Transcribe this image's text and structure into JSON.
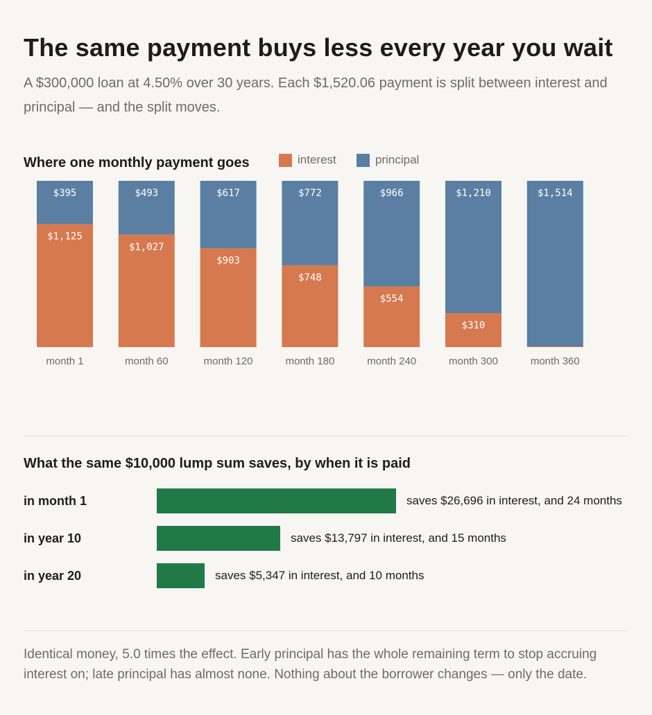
{
  "title": "The same payment buys less every year you wait",
  "subtitle": "A $300,000 loan at 4.50% over 30 years. Each $1,520.06 payment is split between interest and principal — and the split moves.",
  "colors": {
    "interest": "#d6794f",
    "principal": "#5b7fa2",
    "lump_bar": "#217a45",
    "background": "#f7f6f2"
  },
  "chart_data": [
    {
      "type": "bar",
      "stacked": true,
      "title": "Where one monthly payment goes",
      "legend": [
        "interest",
        "principal"
      ],
      "legend_position": "top",
      "categories": [
        "month 1",
        "month 60",
        "month 120",
        "month 180",
        "month 240",
        "month 300",
        "month 360"
      ],
      "series": [
        {
          "name": "interest",
          "values": [
            1125,
            1027,
            903,
            748,
            554,
            310,
            6
          ],
          "labels": [
            "$1,125",
            "$1,027",
            "$903",
            "$748",
            "$554",
            "$310",
            ""
          ]
        },
        {
          "name": "principal",
          "values": [
            395,
            493,
            617,
            772,
            966,
            1210,
            1514
          ],
          "labels": [
            "$395",
            "$493",
            "$617",
            "$772",
            "$966",
            "$1,210",
            "$1,514"
          ]
        }
      ],
      "ylim": [
        0,
        1520.06
      ],
      "grid": false
    },
    {
      "type": "bar",
      "orientation": "horizontal",
      "title": "What the same $10,000 lump sum saves, by when it is paid",
      "categories": [
        "in month 1",
        "in year 10",
        "in year 20"
      ],
      "values": [
        26696,
        13797,
        5347
      ],
      "annotations": [
        "saves $26,696 in interest, and 24 months",
        "saves $13,797 in interest, and 15 months",
        "saves $5,347 in interest, and 10 months"
      ],
      "grid": false
    }
  ],
  "footnote": "Identical money, 5.0 times the effect. Early principal has the whole remaining term to stop accruing interest on; late principal has almost none. Nothing about the borrower changes — only the date."
}
